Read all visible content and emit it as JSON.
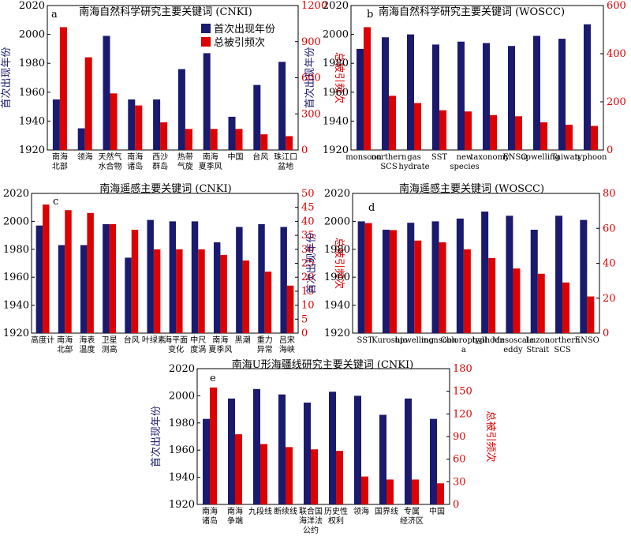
{
  "colors": {
    "first_year": "#1a1a6e",
    "citations": "#dd0000"
  },
  "legend": {
    "first_year": "首次出现年份",
    "citations": "总被引频次"
  },
  "chart_data": [
    {
      "type": "bar",
      "panel": "a",
      "title": "南海自然科学研究主要关键词 (CNKI)",
      "ylabel_left": "首次出现年份",
      "ylabel_right": "总被引频次",
      "ylim_left": [
        1920,
        2020
      ],
      "ylim_right": [
        0,
        1200
      ],
      "left_ticks": [
        1920,
        1940,
        1960,
        1980,
        2000,
        2020
      ],
      "right_ticks": [
        0,
        300,
        600,
        900,
        1200
      ],
      "categories": [
        [
          "南海",
          "北部"
        ],
        [
          "领海"
        ],
        [
          "天然气",
          "水合物"
        ],
        [
          "南海",
          "诸岛"
        ],
        [
          "西沙",
          "群岛"
        ],
        [
          "热带",
          "气旋"
        ],
        [
          "南海",
          "夏季风"
        ],
        [
          "中国"
        ],
        [
          "台风"
        ],
        [
          "珠江口",
          "盆地"
        ]
      ],
      "series": [
        {
          "name": "首次出现年份",
          "axis": "left",
          "values": [
            1955,
            1935,
            1999,
            1955,
            1955,
            1976,
            1987,
            1943,
            1965,
            1981
          ]
        },
        {
          "name": "总被引频次",
          "axis": "right",
          "values": [
            1020,
            770,
            470,
            370,
            230,
            175,
            175,
            175,
            130,
            115
          ]
        }
      ]
    },
    {
      "type": "bar",
      "panel": "b",
      "title": "南海自然科学研究主要关键词 (WOSCC)",
      "ylabel_left": "首次出现年份",
      "ylabel_right": "总被引频次",
      "ylim_left": [
        1920,
        2020
      ],
      "ylim_right": [
        0,
        600
      ],
      "left_ticks": [
        1920,
        1940,
        1960,
        1980,
        2000,
        2020
      ],
      "right_ticks": [
        0,
        200,
        400,
        600
      ],
      "categories": [
        [
          "monsoon"
        ],
        [
          "northern",
          "SCS"
        ],
        [
          "gas",
          "hydrate"
        ],
        [
          "SST"
        ],
        [
          "new",
          "species"
        ],
        [
          "taxonomy"
        ],
        [
          "ENSO"
        ],
        [
          "upwelling"
        ],
        [
          "Taiwan"
        ],
        [
          "typhoon"
        ]
      ],
      "series": [
        {
          "name": "首次出现年份",
          "axis": "left",
          "values": [
            1990,
            1998,
            2000,
            1993,
            1995,
            1994,
            1992,
            1999,
            1997,
            2007
          ]
        },
        {
          "name": "总被引频次",
          "axis": "right",
          "values": [
            510,
            225,
            195,
            165,
            160,
            145,
            140,
            115,
            105,
            100
          ]
        }
      ]
    },
    {
      "type": "bar",
      "panel": "c",
      "title": "南海遥感主要关键词 (CNKI)",
      "ylabel_left": "首次出现年份",
      "ylabel_right": "总被引频次",
      "ylim_left": [
        1920,
        2020
      ],
      "ylim_right": [
        0,
        50
      ],
      "left_ticks": [
        1920,
        1940,
        1960,
        1980,
        2000,
        2020
      ],
      "right_ticks": [
        0,
        5,
        10,
        15,
        20,
        25,
        30,
        35,
        40,
        45,
        50
      ],
      "categories": [
        [
          "高度计"
        ],
        [
          "南海",
          "北部"
        ],
        [
          "海表",
          "温度"
        ],
        [
          "卫星",
          "测高"
        ],
        [
          "台风"
        ],
        [
          "叶绿素"
        ],
        [
          "海平面",
          "变化"
        ],
        [
          "中尺",
          "度涡"
        ],
        [
          "南海",
          "夏季风"
        ],
        [
          "黑潮"
        ],
        [
          "重力",
          "异常"
        ],
        [
          "吕宋",
          "海峡"
        ]
      ],
      "series": [
        {
          "name": "首次出现年份",
          "axis": "left",
          "values": [
            1997,
            1983,
            1983,
            1998,
            1974,
            2001,
            2000,
            2000,
            1985,
            1996,
            1998,
            1996
          ]
        },
        {
          "name": "总被引频次",
          "axis": "right",
          "values": [
            46,
            44,
            43,
            39,
            37,
            30,
            30,
            30,
            28,
            26,
            22,
            17
          ]
        }
      ]
    },
    {
      "type": "bar",
      "panel": "d",
      "title": "南海遥感主要关键词 (WOSCC)",
      "ylabel_left": "首次出现年份",
      "ylabel_right": "总被引频次",
      "ylim_left": [
        1920,
        2020
      ],
      "ylim_right": [
        0,
        80
      ],
      "left_ticks": [
        1920,
        1940,
        1960,
        1980,
        2000,
        2020
      ],
      "right_ticks": [
        0,
        20,
        40,
        60,
        80
      ],
      "categories": [
        [
          "SST"
        ],
        [
          "Kuroshio"
        ],
        [
          "upwelling"
        ],
        [
          "monsoon"
        ],
        [
          "Chlorophyll",
          "a"
        ],
        [
          "typhoon"
        ],
        [
          "Mesoscale",
          "eddy"
        ],
        [
          "Luzon",
          "Strait"
        ],
        [
          "northern",
          "SCS"
        ],
        [
          "ENSO"
        ]
      ],
      "series": [
        {
          "name": "首次出现年份",
          "axis": "left",
          "values": [
            2000,
            1994,
            1999,
            2000,
            2002,
            2007,
            2004,
            1994,
            2004,
            2001
          ]
        },
        {
          "name": "总被引频次",
          "axis": "right",
          "values": [
            63,
            59,
            53,
            52,
            48,
            43,
            37,
            34,
            29,
            21
          ]
        }
      ]
    },
    {
      "type": "bar",
      "panel": "e",
      "title": "南海U形海疆线研究主要关键词 (CNKI)",
      "ylabel_left": "首次出现年份",
      "ylabel_right": "总被引频次",
      "ylim_left": [
        1920,
        2020
      ],
      "ylim_right": [
        0,
        180
      ],
      "left_ticks": [
        1920,
        1940,
        1960,
        1980,
        2000,
        2020
      ],
      "right_ticks": [
        0,
        30,
        60,
        90,
        120,
        150,
        180
      ],
      "categories": [
        [
          "南海",
          "诸岛"
        ],
        [
          "南海",
          "争端"
        ],
        [
          "九段线"
        ],
        [
          "断续线"
        ],
        [
          "联合国",
          "海洋法",
          "公约"
        ],
        [
          "历史性",
          "权利"
        ],
        [
          "领海"
        ],
        [
          "国界线"
        ],
        [
          "专属",
          "经济区"
        ],
        [
          "中国"
        ]
      ],
      "series": [
        {
          "name": "首次出现年份",
          "axis": "left",
          "values": [
            1983,
            1998,
            2005,
            2001,
            1995,
            2003,
            2000,
            1986,
            1998,
            1983
          ]
        },
        {
          "name": "总被引频次",
          "axis": "right",
          "values": [
            155,
            93,
            80,
            76,
            73,
            71,
            37,
            33,
            33,
            28
          ]
        }
      ]
    }
  ]
}
